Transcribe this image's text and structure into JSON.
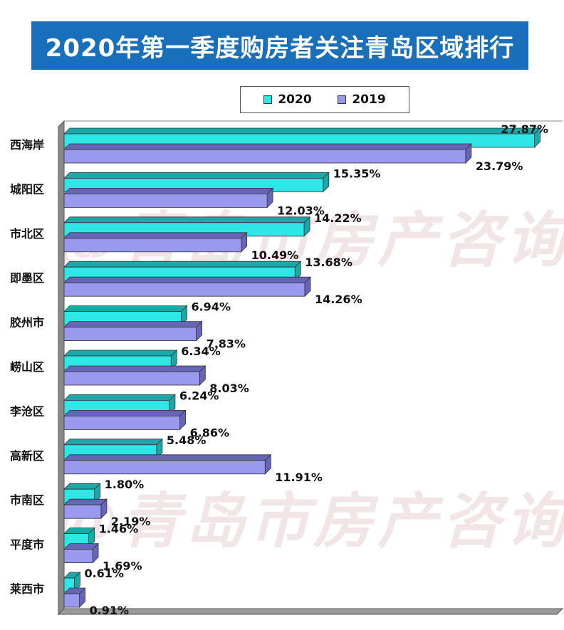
{
  "title": "2020年第一季度购房者关注青岛区域排行",
  "watermark_text": "@青岛市房产咨询",
  "colors": {
    "banner": "#1a6fba",
    "series_2020": "#2ee6e6",
    "series_2020_top": "#1aa8a8",
    "series_2019": "#9999ee",
    "series_2019_top": "#6666b8"
  },
  "chart_data": {
    "type": "bar",
    "orientation": "horizontal",
    "title": "2020年第一季度购房者关注青岛区域排行",
    "legend": {
      "placement": "top-right"
    },
    "categories": [
      "西海岸",
      "城阳区",
      "市北区",
      "即墨区",
      "胶州市",
      "崂山区",
      "李沧区",
      "高新区",
      "市南区",
      "平度市",
      "莱西市"
    ],
    "series": [
      {
        "name": "2020",
        "values": [
          27.87,
          15.35,
          14.22,
          13.68,
          6.94,
          6.34,
          6.24,
          5.48,
          1.8,
          1.46,
          0.61
        ],
        "labels": [
          "27.87%",
          "15.35%",
          "14.22%",
          "13.68%",
          "6.94%",
          "6.34%",
          "6.24%",
          "5.48%",
          "1.80%",
          "1.46%",
          "0.61%"
        ]
      },
      {
        "name": "2019",
        "values": [
          23.79,
          12.03,
          10.49,
          14.26,
          7.83,
          8.03,
          6.86,
          11.91,
          2.19,
          1.69,
          0.91
        ],
        "labels": [
          "23.79%",
          "12.03%",
          "10.49%",
          "14.26%",
          "7.83%",
          "8.03%",
          "6.86%",
          "11.91%",
          "2.19%",
          "1.69%",
          "0.91%"
        ]
      }
    ],
    "xlim": [
      0,
      30
    ],
    "grid": false
  }
}
